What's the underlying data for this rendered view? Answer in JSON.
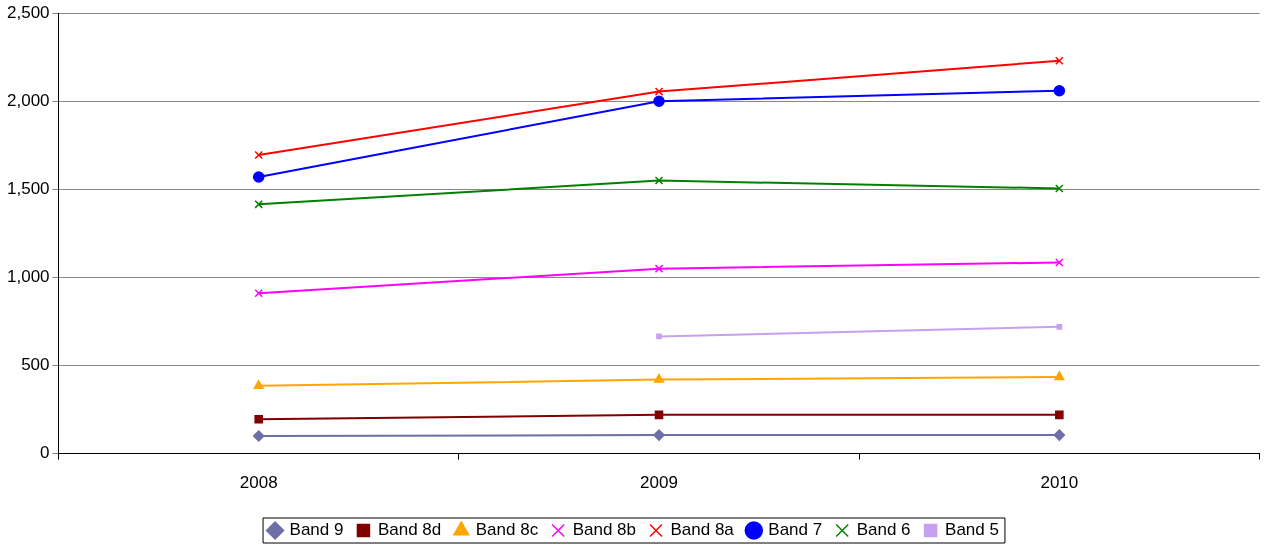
{
  "chart_data": {
    "type": "line",
    "categories": [
      "2008",
      "2009",
      "2010"
    ],
    "series": [
      {
        "name": "Band 9",
        "color": "#6e6ea8",
        "marker": "diamond",
        "values": [
          100,
          105,
          105
        ]
      },
      {
        "name": "Band 8d",
        "color": "#800000",
        "marker": "square",
        "values": [
          195,
          220,
          220
        ]
      },
      {
        "name": "Band 8c",
        "color": "#ffa500",
        "marker": "triangle",
        "values": [
          385,
          420,
          435
        ]
      },
      {
        "name": "Band 8b",
        "color": "#ff00ff",
        "marker": "cross",
        "values": [
          910,
          1050,
          1085
        ]
      },
      {
        "name": "Band 8a",
        "color": "#ff0000",
        "marker": "cross",
        "values": [
          1695,
          2055,
          2230
        ]
      },
      {
        "name": "Band 7",
        "color": "#0000ff",
        "marker": "circle",
        "values": [
          1570,
          2000,
          2060
        ]
      },
      {
        "name": "Band 6",
        "color": "#008000",
        "marker": "cross",
        "values": [
          1415,
          1550,
          1505
        ]
      },
      {
        "name": "Band 5",
        "color": "#c8a0f0",
        "marker": "square",
        "values": [
          null,
          665,
          720
        ]
      }
    ],
    "ylim": [
      0,
      2500
    ],
    "yticks": [
      {
        "value": 0,
        "label": "0"
      },
      {
        "value": 500,
        "label": "500"
      },
      {
        "value": 1000,
        "label": "1,000"
      },
      {
        "value": 1500,
        "label": "1,500"
      },
      {
        "value": 2000,
        "label": "2,000"
      },
      {
        "value": 2500,
        "label": "2,500"
      }
    ],
    "grid": "y",
    "legend": "bottom",
    "line_style": "solid"
  }
}
